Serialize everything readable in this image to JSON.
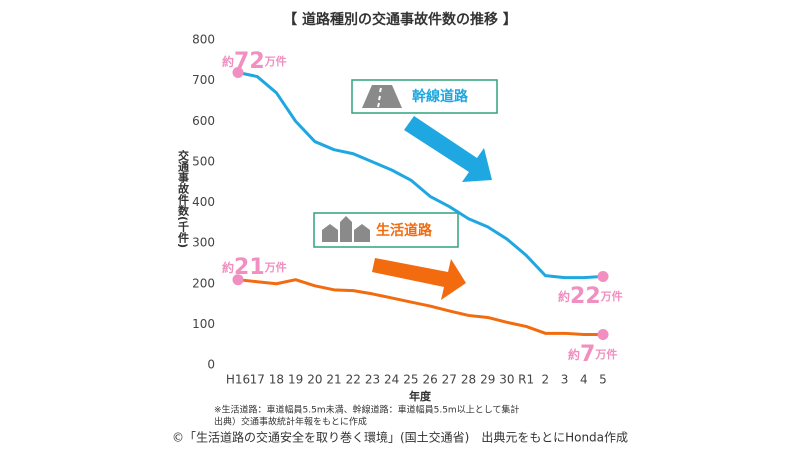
{
  "chart_data": {
    "type": "line",
    "title": "【 道路種別の交通事故件数の推移 】",
    "y_label": "交通事故件数(千件)",
    "x_label": "年度",
    "categories": [
      "H16",
      "17",
      "18",
      "19",
      "20",
      "21",
      "22",
      "23",
      "24",
      "25",
      "26",
      "27",
      "28",
      "29",
      "30",
      "R1",
      "2",
      "3",
      "4",
      "5"
    ],
    "series": [
      {
        "name": "幹線道路",
        "color": "#1ea7e1",
        "values": [
          720,
          710,
          670,
          600,
          550,
          530,
          520,
          500,
          480,
          455,
          415,
          390,
          360,
          340,
          310,
          270,
          220,
          215,
          215,
          218
        ]
      },
      {
        "name": "生活道路",
        "color": "#f26b0f",
        "values": [
          210,
          205,
          200,
          210,
          195,
          185,
          183,
          175,
          165,
          155,
          145,
          133,
          122,
          117,
          105,
          95,
          78,
          78,
          75,
          75
        ]
      }
    ],
    "ylim": [
      0,
      800
    ],
    "yticks": [
      0,
      100,
      200,
      300,
      400,
      500,
      600,
      700,
      800
    ],
    "grid": false,
    "annotations": [
      {
        "prefix": "約",
        "number": "72",
        "suffix": "万件"
      },
      {
        "prefix": "約",
        "number": "21",
        "suffix": "万件"
      },
      {
        "prefix": "約",
        "number": "22",
        "suffix": "万件"
      },
      {
        "prefix": "約",
        "number": "7",
        "suffix": "万件"
      }
    ],
    "notes": [
      "※生活道路：車道幅員5.5m未満、幹線道路：車道幅員5.5m以上として集計",
      "出典）交通事故統計年報をもとに作成"
    ],
    "credit": "©「生活道路の交通安全を取り巻く環境」(国土交通省)　出典元をもとにHonda作成"
  }
}
